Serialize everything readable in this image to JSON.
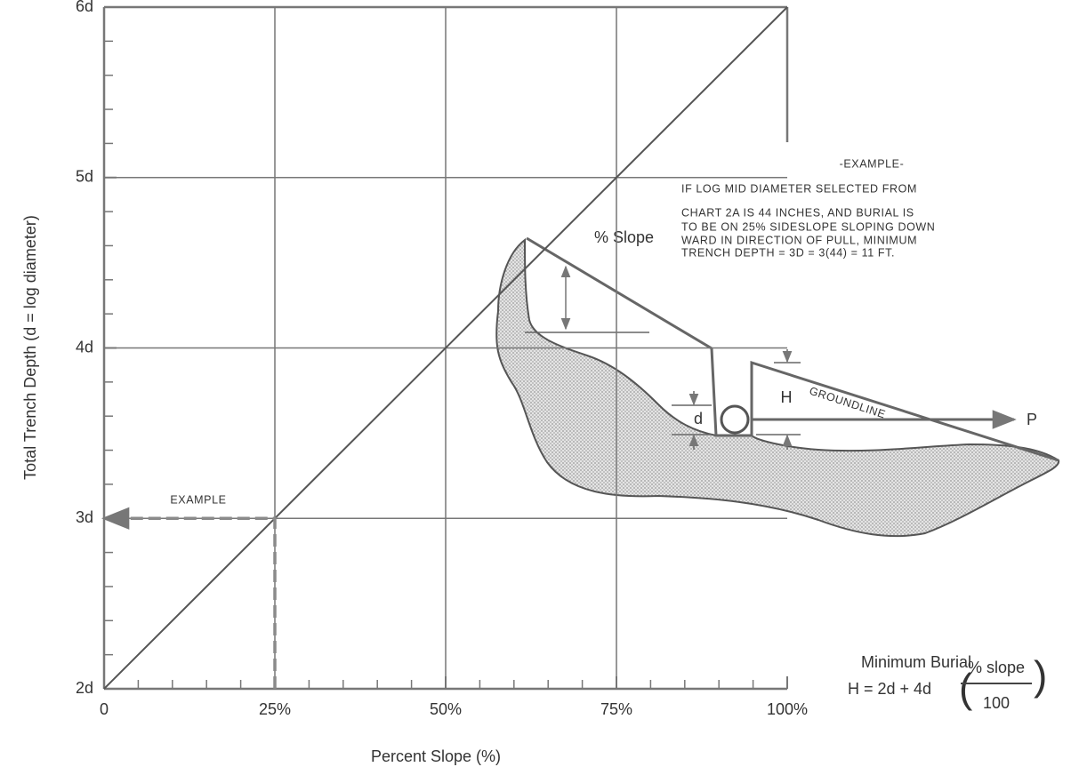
{
  "chart_data": {
    "type": "line",
    "xlabel": "Percent Slope (%)",
    "ylabel": "Total Trench Depth (d = log diameter)",
    "xlim": [
      0,
      100
    ],
    "ylim": [
      2,
      6
    ],
    "xticks": [
      0,
      {
        "value": 25,
        "label": "25%"
      },
      {
        "value": 50,
        "label": "50%"
      },
      {
        "value": 75,
        "label": "75%"
      },
      {
        "value": 100,
        "label": "100%"
      }
    ],
    "yticks": [
      {
        "value": 2,
        "label": "2d"
      },
      {
        "value": 3,
        "label": "3d"
      },
      {
        "value": 4,
        "label": "4d"
      },
      {
        "value": 5,
        "label": "5d"
      },
      {
        "value": 6,
        "label": "6d"
      }
    ],
    "xminorticks": [
      5,
      10,
      15,
      20,
      30,
      35,
      40,
      45,
      55,
      60,
      65,
      70,
      80,
      85,
      90,
      95
    ],
    "yminorticks": [
      2.2,
      2.4,
      2.6,
      2.8,
      3.2,
      3.4,
      3.6,
      3.8,
      4.2,
      4.4,
      4.6,
      4.8,
      5.2,
      5.4,
      5.6,
      5.8
    ],
    "grid": true,
    "series": [
      {
        "name": "Total Trench Depth",
        "color": "#555555",
        "x": [
          0,
          100
        ],
        "values": [
          2,
          6
        ]
      },
      {
        "name": "EXAMPLE",
        "color": "#8a8a8a",
        "dashed": true,
        "x": [
          25,
          25,
          0
        ],
        "values": [
          2,
          3,
          3
        ]
      }
    ],
    "annotations": {
      "example_box": [
        "-EXAMPLE-",
        "IF LOG MID DIAMETER SELECTED FROM",
        "CHART 2A IS 44 INCHES, AND BURIAL IS",
        "TO BE ON 25% SIDESLOPE SLOPING DOWN",
        "WARD IN DIRECTION OF PULL, MINIMUM",
        "TRENCH DEPTH = 3D = 3(44) = 11 FT."
      ],
      "diagram": {
        "slope": "% Slope",
        "groundline": "GROUNDLINE",
        "h": "H",
        "d": "d",
        "p": "P"
      },
      "formula": {
        "title": "Minimum Burial",
        "lhs": "H = 2d + 4d",
        "numerator": "% slope",
        "denominator": "100"
      }
    }
  }
}
